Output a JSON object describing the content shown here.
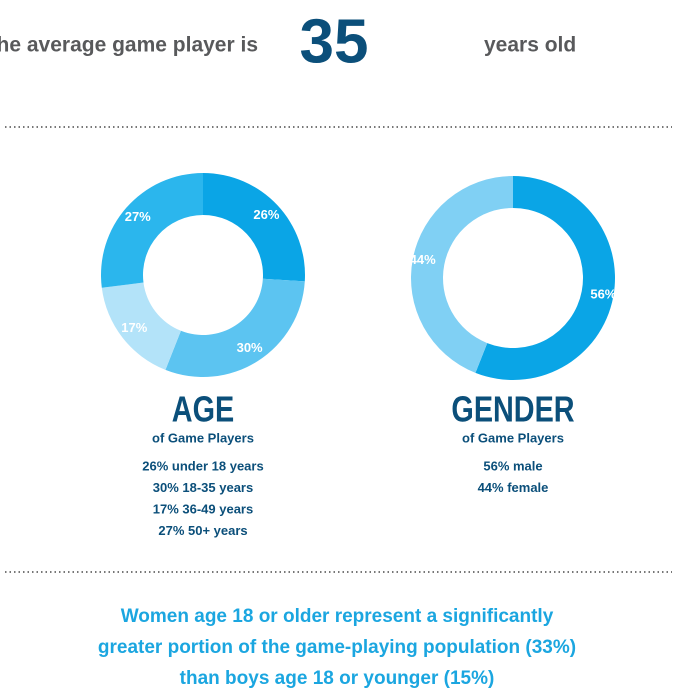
{
  "headline": {
    "before": "The average game player is",
    "number": "35",
    "after": "years old"
  },
  "chart_data": [
    {
      "type": "pie",
      "title": "AGE",
      "subtitle": "of Game Players",
      "values": [
        26,
        30,
        17,
        27
      ],
      "value_labels": [
        "26%",
        "30%",
        "17%",
        "27%"
      ],
      "colors": [
        "#0aa5e6",
        "#5cc4f1",
        "#b3e3f9",
        "#2bb6ed"
      ],
      "details": [
        "26% under 18 years",
        "30% 18-35 years",
        "17% 36-49 years",
        "27% 50+ years"
      ]
    },
    {
      "type": "pie",
      "title": "GENDER",
      "subtitle": "of Game Players",
      "values": [
        56,
        44
      ],
      "value_labels": [
        "56%",
        "44%"
      ],
      "colors": [
        "#0aa5e6",
        "#80d0f4"
      ],
      "details": [
        "56% male",
        "44% female"
      ]
    }
  ],
  "footer": [
    "Women age 18 or older represent a significantly",
    "greater portion of the game-playing population (33%)",
    "than boys age 18 or younger (15%)"
  ]
}
